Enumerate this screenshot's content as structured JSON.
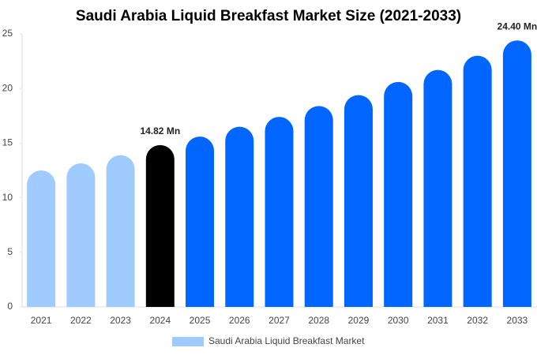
{
  "chart_data": {
    "type": "bar",
    "title": "Saudi Arabia Liquid Breakfast Market Size (2021-2033)",
    "categories": [
      "2021",
      "2022",
      "2023",
      "2024",
      "2025",
      "2026",
      "2027",
      "2028",
      "2029",
      "2030",
      "2031",
      "2032",
      "2033"
    ],
    "series": [
      {
        "name": "Saudi Arabia Liquid Breakfast Market",
        "color": "#a0cbff",
        "values": [
          12.5,
          13.15,
          13.9,
          14.82,
          15.6,
          16.5,
          17.4,
          18.4,
          19.4,
          20.6,
          21.7,
          23.0,
          24.4
        ],
        "value_labels": [
          null,
          null,
          null,
          "14.82 Mn",
          null,
          null,
          null,
          null,
          null,
          null,
          null,
          null,
          "24.40 Mn"
        ],
        "bar_colors": [
          "#a0cbff",
          "#a0cbff",
          "#a0cbff",
          "#000000",
          "#0066ff",
          "#0066ff",
          "#0066ff",
          "#0066ff",
          "#0066ff",
          "#0066ff",
          "#0066ff",
          "#0066ff",
          "#0066ff"
        ]
      }
    ],
    "ylim": [
      0,
      25
    ],
    "yticks": [
      0,
      5,
      10,
      15,
      20,
      25
    ],
    "grid": false,
    "legend": "bottom"
  }
}
